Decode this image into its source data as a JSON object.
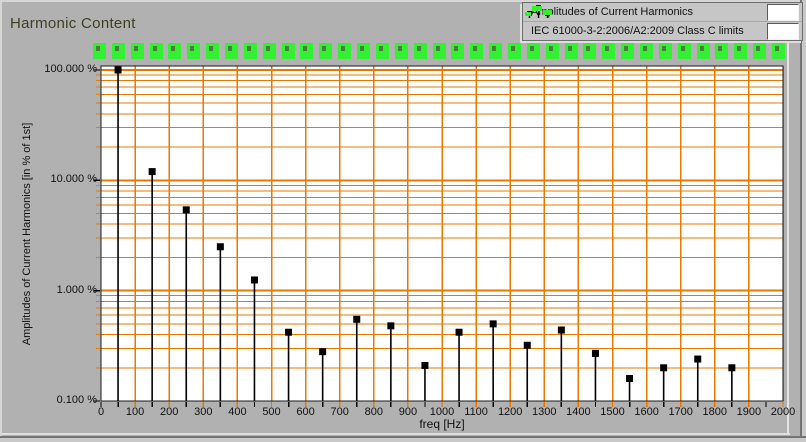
{
  "title": "Harmonic Content",
  "colors": {
    "panel_bg": "#B1B1B1",
    "plot_bg": "#FFFFFF",
    "grid": "#E87800",
    "marker_black": "#000000",
    "limit_green": "#33F033",
    "title_text": "#3F3F20"
  },
  "chart_data": {
    "type": "stem",
    "y_scale": "log",
    "title": "Harmonic Content",
    "xlabel": "freq [Hz]",
    "ylabel": "Amplitudes of Current Harmonics [in % of 1st]",
    "xlim": [
      0,
      2000
    ],
    "x_major_tick_step": 100,
    "x_minor_tick_step": 50,
    "x_tick_labels": [
      "0",
      "100",
      "200",
      "300",
      "400",
      "500",
      "600",
      "700",
      "800",
      "900",
      "1000",
      "1100",
      "1200",
      "1300",
      "1400",
      "1500",
      "1600",
      "1700",
      "1800",
      "1900",
      "2000"
    ],
    "ylim": [
      0.1,
      100
    ],
    "y_tick_values": [
      100,
      10,
      1,
      0.1
    ],
    "y_tick_labels": [
      "100.000 %",
      "10.000 %",
      "1.000 %",
      "0.100 %"
    ],
    "grid": true,
    "legend_position": "top-right",
    "series": [
      {
        "name": "Amplitudes of Current Harmonics",
        "type": "stem",
        "marker": "black-square",
        "x": [
          50,
          150,
          250,
          350,
          450,
          550,
          650,
          750,
          850,
          950,
          1050,
          1150,
          1250,
          1350,
          1450,
          1550,
          1650,
          1750,
          1850
        ],
        "values": [
          100,
          12,
          5.4,
          2.5,
          1.25,
          0.42,
          0.28,
          0.55,
          0.48,
          0.21,
          0.42,
          0.5,
          0.32,
          0.44,
          0.27,
          0.16,
          0.2,
          0.24,
          0.2
        ]
      },
      {
        "name": "IEC 61000-3-2:2006/A2:2009 Class C limits",
        "type": "markers",
        "marker": "green-square",
        "clipped_above_ymax": true,
        "visible_marker_count": 37
      }
    ]
  }
}
